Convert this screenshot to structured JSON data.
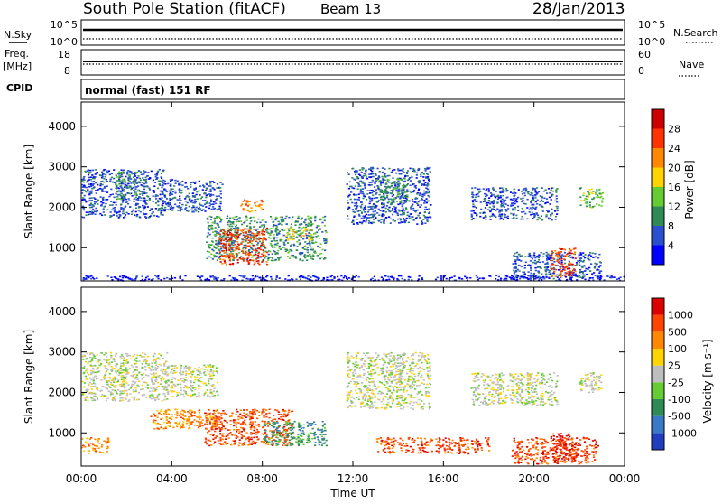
{
  "header": {
    "station": "South Pole Station (fitACF)",
    "beam": "Beam 13",
    "date": "28/Jan/2013"
  },
  "top_panels": {
    "nsky_label": "N.Sky",
    "nsky_ticks": [
      "10^5",
      "10^0"
    ],
    "nsearch_label": "N.Search",
    "nsearch_ticks": [
      "10^5",
      "10^0"
    ],
    "freq_label": "Freq.",
    "freq_unit": "[MHz]",
    "freq_ticks": [
      "18",
      "8"
    ],
    "nave_label": "Nave",
    "nave_ticks": [
      "60",
      "0"
    ],
    "cpid_label": "CPID",
    "cpid_text": "normal (fast) 151 RF"
  },
  "chart_data": [
    {
      "type": "heatmap",
      "panel": "power",
      "ylabel": "Slant Range [km]",
      "xlim": [
        0,
        24
      ],
      "ylim": [
        180,
        4600
      ],
      "x_ticks": [
        "00:00",
        "04:00",
        "08:00",
        "12:00",
        "16:00",
        "20:00",
        "00:00"
      ],
      "y_ticks": [
        1000,
        2000,
        3000,
        4000
      ],
      "colorbar": {
        "label": "Power [dB]",
        "ticks": [
          "4",
          "8",
          "12",
          "16",
          "20",
          "24",
          "28"
        ],
        "colors": [
          "#0000ff",
          "#2a50d0",
          "#2e8b57",
          "#66cc33",
          "#ffd400",
          "#ff8800",
          "#ff3300",
          "#cc0000"
        ]
      },
      "regions": [
        {
          "t0": 0.0,
          "t1": 3.6,
          "r0": 1750,
          "r1": 2950,
          "level": 1
        },
        {
          "t0": 1.5,
          "t1": 2.6,
          "r0": 2200,
          "r1": 2900,
          "level": 2
        },
        {
          "t0": 3.5,
          "t1": 6.2,
          "r0": 1900,
          "r1": 2700,
          "level": 1
        },
        {
          "t0": 5.5,
          "t1": 10.8,
          "r0": 700,
          "r1": 1800,
          "level": 2
        },
        {
          "t0": 6.0,
          "t1": 8.2,
          "r0": 600,
          "r1": 1500,
          "level": 6
        },
        {
          "t0": 7.0,
          "t1": 8.0,
          "r0": 1900,
          "r1": 2200,
          "level": 5
        },
        {
          "t0": 9.0,
          "t1": 10.2,
          "r0": 1200,
          "r1": 1500,
          "level": 4
        },
        {
          "t0": 11.7,
          "t1": 15.4,
          "r0": 1600,
          "r1": 3000,
          "level": 1
        },
        {
          "t0": 13.0,
          "t1": 14.4,
          "r0": 2100,
          "r1": 2800,
          "level": 2
        },
        {
          "t0": 17.2,
          "t1": 21.0,
          "r0": 1700,
          "r1": 2500,
          "level": 1
        },
        {
          "t0": 22.0,
          "t1": 23.0,
          "r0": 2000,
          "r1": 2500,
          "level": 3
        },
        {
          "t0": 19.0,
          "t1": 23.0,
          "r0": 250,
          "r1": 900,
          "level": 1
        },
        {
          "t0": 20.7,
          "t1": 21.8,
          "r0": 300,
          "r1": 1000,
          "level": 6
        },
        {
          "t0": 0.0,
          "t1": 24.0,
          "r0": 200,
          "r1": 330,
          "level": 0
        }
      ]
    },
    {
      "type": "heatmap",
      "panel": "velocity",
      "ylabel": "Slant Range [km]",
      "xlabel": "Time UT",
      "xlim": [
        0,
        24
      ],
      "ylim": [
        180,
        4600
      ],
      "x_ticks": [
        "00:00",
        "04:00",
        "08:00",
        "12:00",
        "16:00",
        "20:00",
        "00:00"
      ],
      "y_ticks": [
        1000,
        2000,
        3000,
        4000
      ],
      "colorbar": {
        "label": "Velocity [m s⁻¹]",
        "ticks": [
          "1000",
          "500",
          "100",
          "25",
          "-25",
          "-100",
          "-500",
          "-1000"
        ],
        "colors": [
          "#1f3fbf",
          "#3a78c8",
          "#2e8b57",
          "#66cc33",
          "#bebebe",
          "#ffd400",
          "#ff8800",
          "#ff4400",
          "#dd0000"
        ]
      },
      "regions": [
        {
          "t0": 0.0,
          "t1": 3.8,
          "r0": 1800,
          "r1": 3000,
          "level": 4
        },
        {
          "t0": 3.6,
          "t1": 6.0,
          "r0": 1900,
          "r1": 2700,
          "level": 4
        },
        {
          "t0": 5.4,
          "t1": 9.3,
          "r0": 700,
          "r1": 1600,
          "level": 7
        },
        {
          "t0": 8.0,
          "t1": 10.8,
          "r0": 700,
          "r1": 1300,
          "level": 2
        },
        {
          "t0": 3.0,
          "t1": 6.0,
          "r0": 1100,
          "r1": 1600,
          "level": 6
        },
        {
          "t0": 0.0,
          "t1": 1.2,
          "r0": 500,
          "r1": 900,
          "level": 6
        },
        {
          "t0": 11.7,
          "t1": 15.4,
          "r0": 1600,
          "r1": 3000,
          "level": 4
        },
        {
          "t0": 17.2,
          "t1": 21.0,
          "r0": 1700,
          "r1": 2500,
          "level": 4
        },
        {
          "t0": 22.0,
          "t1": 23.0,
          "r0": 2000,
          "r1": 2500,
          "level": 4
        },
        {
          "t0": 19.0,
          "t1": 22.8,
          "r0": 250,
          "r1": 900,
          "level": 7
        },
        {
          "t0": 20.7,
          "t1": 21.8,
          "r0": 300,
          "r1": 1000,
          "level": 8
        },
        {
          "t0": 13.0,
          "t1": 18.0,
          "r0": 500,
          "r1": 900,
          "level": 7
        }
      ]
    }
  ]
}
